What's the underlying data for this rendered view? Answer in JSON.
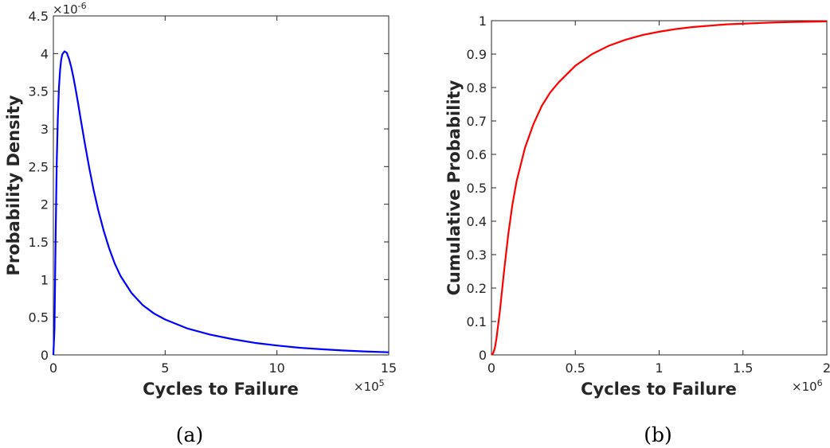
{
  "chart_data": [
    {
      "type": "line",
      "caption": "(a)",
      "xlabel": "Cycles to Failure",
      "ylabel": "Probability Density",
      "x_multiplier": "×10",
      "x_multiplier_exp": "5",
      "y_multiplier": "×10",
      "y_multiplier_exp": "-6",
      "xlim": [
        0,
        15
      ],
      "ylim": [
        0,
        4.5
      ],
      "xticks": [
        "0",
        "5",
        "10",
        "15"
      ],
      "yticks": [
        "0",
        "0.5",
        "1",
        "1.5",
        "2",
        "2.5",
        "3",
        "3.5",
        "4",
        "4.5"
      ],
      "grid": false,
      "series": [
        {
          "color": "#0000ff",
          "x": [
            0,
            0.05,
            0.1,
            0.15,
            0.2,
            0.25,
            0.3,
            0.35,
            0.4,
            0.5,
            0.6,
            0.7,
            0.8,
            0.9,
            1.0,
            1.1,
            1.2,
            1.4,
            1.6,
            1.8,
            2.0,
            2.25,
            2.5,
            2.75,
            3.0,
            3.5,
            4.0,
            4.5,
            5.0,
            6.0,
            7.0,
            8.0,
            9.0,
            10.0,
            11.0,
            12.0,
            13.0,
            14.0,
            15.0
          ],
          "values": [
            0,
            0.35,
            1.55,
            2.55,
            3.15,
            3.55,
            3.78,
            3.92,
            3.99,
            4.03,
            4.01,
            3.93,
            3.82,
            3.68,
            3.52,
            3.35,
            3.17,
            2.82,
            2.49,
            2.19,
            1.93,
            1.65,
            1.41,
            1.21,
            1.05,
            0.82,
            0.66,
            0.55,
            0.47,
            0.35,
            0.27,
            0.21,
            0.16,
            0.125,
            0.095,
            0.075,
            0.058,
            0.045,
            0.035
          ]
        }
      ]
    },
    {
      "type": "line",
      "caption": "(b)",
      "xlabel": "Cycles to Failure",
      "ylabel": "Cumulative Probability",
      "x_multiplier": "×10",
      "x_multiplier_exp": "6",
      "xlim": [
        0,
        2
      ],
      "ylim": [
        0,
        1
      ],
      "xticks": [
        "0",
        "0.5",
        "1",
        "1.5",
        "2"
      ],
      "yticks": [
        "0",
        "0.1",
        "0.2",
        "0.3",
        "0.4",
        "0.5",
        "0.6",
        "0.7",
        "0.8",
        "0.9",
        "1"
      ],
      "grid": false,
      "series": [
        {
          "color": "#ff0000",
          "x": [
            0,
            0.01,
            0.02,
            0.03,
            0.05,
            0.075,
            0.1,
            0.125,
            0.15,
            0.2,
            0.25,
            0.3,
            0.35,
            0.4,
            0.5,
            0.6,
            0.7,
            0.8,
            0.9,
            1.0,
            1.1,
            1.2,
            1.3,
            1.4,
            1.5,
            1.6,
            1.7,
            1.8,
            1.9,
            2.0
          ],
          "values": [
            0,
            0.005,
            0.02,
            0.05,
            0.13,
            0.25,
            0.36,
            0.45,
            0.52,
            0.62,
            0.69,
            0.745,
            0.785,
            0.815,
            0.865,
            0.9,
            0.925,
            0.943,
            0.957,
            0.967,
            0.975,
            0.981,
            0.985,
            0.989,
            0.991,
            0.993,
            0.995,
            0.996,
            0.997,
            0.998
          ]
        }
      ]
    }
  ]
}
